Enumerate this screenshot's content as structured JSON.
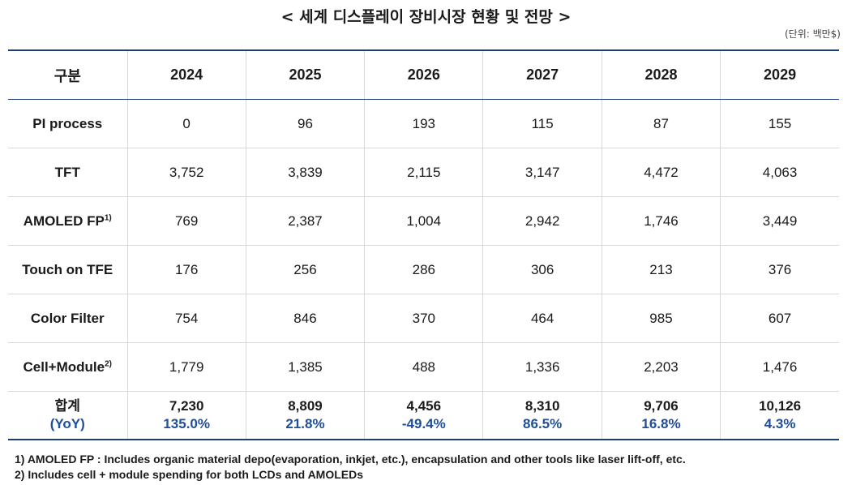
{
  "title": "< 세계 디스플레이 장비시장 현황 및 전망 >",
  "unit": "(단위: 백만$)",
  "table": {
    "header": [
      "구분",
      "2024",
      "2025",
      "2026",
      "2027",
      "2028",
      "2029"
    ],
    "rows": [
      {
        "label": "PI process",
        "sup": "",
        "values": [
          "0",
          "96",
          "193",
          "115",
          "87",
          "155"
        ]
      },
      {
        "label": "TFT",
        "sup": "",
        "values": [
          "3,752",
          "3,839",
          "2,115",
          "3,147",
          "4,472",
          "4,063"
        ]
      },
      {
        "label": "AMOLED FP",
        "sup": "1)",
        "values": [
          "769",
          "2,387",
          "1,004",
          "2,942",
          "1,746",
          "3,449"
        ]
      },
      {
        "label": "Touch on TFE",
        "sup": "",
        "values": [
          "176",
          "256",
          "286",
          "306",
          "213",
          "376"
        ]
      },
      {
        "label": "Color Filter",
        "sup": "",
        "values": [
          "754",
          "846",
          "370",
          "464",
          "985",
          "607"
        ]
      },
      {
        "label": "Cell+Module",
        "sup": "2)",
        "values": [
          "1,779",
          "1,385",
          "488",
          "1,336",
          "2,203",
          "1,476"
        ]
      }
    ],
    "total": {
      "label": "합계",
      "yoy_label": "(YoY)",
      "values": [
        "7,230",
        "8,809",
        "4,456",
        "8,310",
        "9,706",
        "10,126"
      ],
      "yoy": [
        "135.0%",
        "21.8%",
        "-49.4%",
        "86.5%",
        "16.8%",
        "4.3%"
      ]
    }
  },
  "notes": [
    "1) AMOLED FP : Includes organic material depo(evaporation, inkjet, etc.), encapsulation and other tools like laser lift-off, etc.",
    "2) Includes cell + module spending for both LCDs and AMOLEDs"
  ],
  "colors": {
    "accent": "#1f3d7a",
    "yoy": "#1f4e9a",
    "grid": "#d9d9d9"
  }
}
